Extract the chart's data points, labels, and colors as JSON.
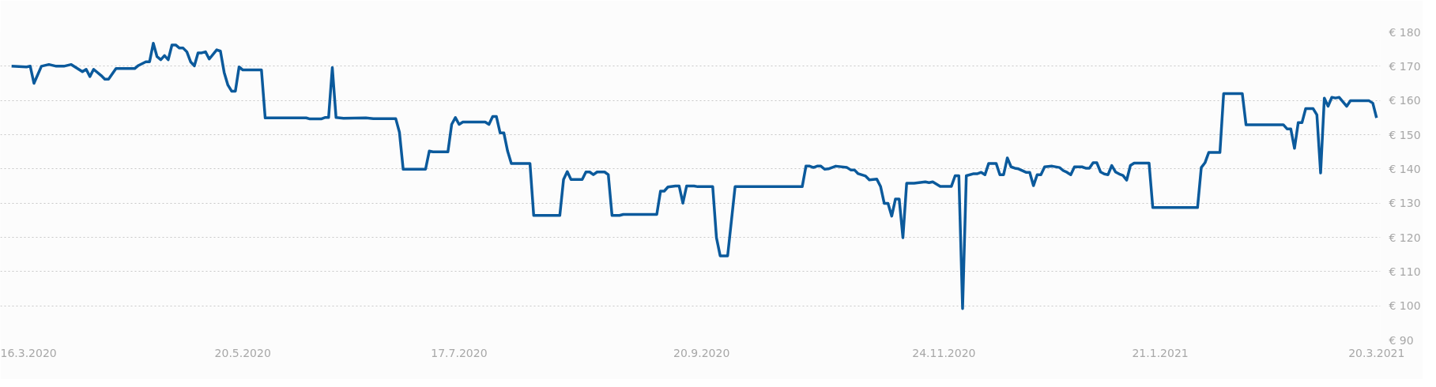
{
  "chart_data": {
    "type": "line",
    "x": [
      "2020-03-19",
      "2020-03-23",
      "2020-03-24",
      "2020-03-25",
      "2020-03-27",
      "2020-03-29",
      "2020-03-31",
      "2020-04-02",
      "2020-04-04",
      "2020-04-07",
      "2020-04-08",
      "2020-04-09",
      "2020-04-10",
      "2020-04-12",
      "2020-04-13",
      "2020-04-14",
      "2020-04-16",
      "2020-04-21",
      "2020-04-22",
      "2020-04-24",
      "2020-04-25",
      "2020-04-26",
      "2020-04-27",
      "2020-04-28",
      "2020-04-29",
      "2020-04-30",
      "2020-05-01",
      "2020-05-02",
      "2020-05-03",
      "2020-05-04",
      "2020-05-05",
      "2020-05-06",
      "2020-05-07",
      "2020-05-08",
      "2020-05-09",
      "2020-05-10",
      "2020-05-11",
      "2020-05-13",
      "2020-05-14",
      "2020-05-15",
      "2020-05-16",
      "2020-05-17",
      "2020-05-18",
      "2020-05-19",
      "2020-05-20",
      "2020-05-25",
      "2020-05-26",
      "2020-06-06",
      "2020-06-07",
      "2020-06-10",
      "2020-06-11",
      "2020-06-12",
      "2020-06-13",
      "2020-06-14",
      "2020-06-16",
      "2020-06-22",
      "2020-06-24",
      "2020-06-30",
      "2020-07-01",
      "2020-07-02",
      "2020-07-08",
      "2020-07-09",
      "2020-07-10",
      "2020-07-14",
      "2020-07-15",
      "2020-07-16",
      "2020-07-17",
      "2020-07-18",
      "2020-07-24",
      "2020-07-25",
      "2020-07-26",
      "2020-07-27",
      "2020-07-28",
      "2020-07-29",
      "2020-07-30",
      "2020-07-31",
      "2020-08-05",
      "2020-08-06",
      "2020-08-13",
      "2020-08-14",
      "2020-08-15",
      "2020-08-16",
      "2020-08-19",
      "2020-08-20",
      "2020-08-21",
      "2020-08-22",
      "2020-08-23",
      "2020-08-25",
      "2020-08-26",
      "2020-08-27",
      "2020-08-29",
      "2020-08-30",
      "2020-09-08",
      "2020-09-09",
      "2020-09-10",
      "2020-09-11",
      "2020-09-13",
      "2020-09-14",
      "2020-09-15",
      "2020-09-16",
      "2020-09-18",
      "2020-09-19",
      "2020-09-23",
      "2020-09-24",
      "2020-09-25",
      "2020-09-27",
      "2020-09-29",
      "2020-10-17",
      "2020-10-18",
      "2020-10-19",
      "2020-10-20",
      "2020-10-21",
      "2020-10-22",
      "2020-10-23",
      "2020-10-24",
      "2020-10-26",
      "2020-10-29",
      "2020-10-30",
      "2020-10-31",
      "2020-11-01",
      "2020-11-03",
      "2020-11-04",
      "2020-11-06",
      "2020-11-07",
      "2020-11-08",
      "2020-11-09",
      "2020-11-10",
      "2020-11-11",
      "2020-11-12",
      "2020-11-13",
      "2020-11-14",
      "2020-11-16",
      "2020-11-19",
      "2020-11-20",
      "2020-11-21",
      "2020-11-23",
      "2020-11-26",
      "2020-11-27",
      "2020-11-28",
      "2020-11-29",
      "2020-11-30",
      "2020-12-02",
      "2020-12-03",
      "2020-12-04",
      "2020-12-05",
      "2020-12-06",
      "2020-12-08",
      "2020-12-09",
      "2020-12-10",
      "2020-12-11",
      "2020-12-12",
      "2020-12-13",
      "2020-12-14",
      "2020-12-16",
      "2020-12-17",
      "2020-12-18",
      "2020-12-19",
      "2020-12-20",
      "2020-12-21",
      "2020-12-23",
      "2020-12-25",
      "2020-12-26",
      "2020-12-27",
      "2020-12-28",
      "2020-12-29",
      "2020-12-31",
      "2021-01-01",
      "2021-01-02",
      "2021-01-03",
      "2021-01-04",
      "2021-01-05",
      "2021-01-06",
      "2021-01-07",
      "2021-01-08",
      "2021-01-09",
      "2021-01-10",
      "2021-01-11",
      "2021-01-12",
      "2021-01-13",
      "2021-01-14",
      "2021-01-18",
      "2021-01-19",
      "2021-01-31",
      "2021-02-01",
      "2021-02-02",
      "2021-02-03",
      "2021-02-06",
      "2021-02-07",
      "2021-02-12",
      "2021-02-13",
      "2021-02-23",
      "2021-02-24",
      "2021-02-25",
      "2021-02-26",
      "2021-02-27",
      "2021-02-28",
      "2021-03-01",
      "2021-03-03",
      "2021-03-04",
      "2021-03-05",
      "2021-03-06",
      "2021-03-07",
      "2021-03-08",
      "2021-03-09",
      "2021-03-10",
      "2021-03-12",
      "2021-03-13",
      "2021-03-18",
      "2021-03-19",
      "2021-03-20"
    ],
    "series": [
      {
        "color": "#0b5a9c",
        "values": [
          170,
          169.8,
          170,
          165,
          170,
          170.5,
          170,
          170,
          170.5,
          168.4,
          169.1,
          167,
          169.1,
          167.3,
          166.2,
          166.2,
          169.3,
          169.3,
          170.2,
          171.3,
          171.3,
          176.7,
          172.8,
          171.9,
          173.1,
          171.9,
          176.2,
          176.2,
          175.3,
          175.3,
          174.2,
          171.3,
          170.1,
          173.9,
          173.9,
          174.2,
          172.1,
          174.8,
          174.4,
          168.2,
          164.5,
          162.7,
          162.7,
          169.8,
          168.9,
          168.9,
          154.9,
          154.9,
          154.6,
          154.6,
          155,
          155,
          169.6,
          155,
          154.8,
          154.9,
          154.7,
          154.7,
          150.7,
          139.9,
          139.9,
          145.2,
          145,
          145,
          153,
          155,
          153,
          153.7,
          153.7,
          153,
          155.3,
          155.3,
          150.5,
          150.5,
          145.2,
          141.6,
          141.6,
          126.4,
          126.4,
          136.9,
          139.2,
          136.9,
          136.9,
          139.1,
          139.1,
          138.3,
          139.1,
          139.1,
          138.3,
          126.4,
          126.4,
          126.7,
          126.7,
          133.5,
          133.5,
          134.7,
          135,
          135,
          130,
          135,
          135,
          134.8,
          134.8,
          119.9,
          114.6,
          114.6,
          134.8,
          134.8,
          140.8,
          140.8,
          140.4,
          140.8,
          140.8,
          139.9,
          140,
          140.8,
          140.4,
          139.7,
          139.7,
          138.6,
          137.9,
          136.8,
          137,
          134.9,
          129.9,
          129.9,
          126.2,
          131.2,
          131.2,
          119.9,
          135.8,
          135.8,
          136.2,
          136,
          136.2,
          134.9,
          134.9,
          138,
          138,
          99.2,
          138,
          138.6,
          138.6,
          139,
          138.3,
          141.6,
          141.6,
          138.3,
          138.3,
          143.2,
          140.6,
          140.2,
          140,
          139,
          139,
          135.1,
          138.3,
          138.3,
          140.6,
          140.8,
          140.4,
          139.5,
          139,
          138.3,
          140.6,
          140.6,
          140.2,
          140.2,
          141.8,
          141.8,
          139.1,
          138.5,
          138.3,
          141,
          139.1,
          138.5,
          138.1,
          136.7,
          141,
          141.7,
          141.7,
          128.7,
          128.7,
          140.4,
          141.8,
          144.8,
          144.8,
          162,
          162,
          152.9,
          152.9,
          151.7,
          151.7,
          146,
          153.5,
          153.5,
          157.6,
          157.6,
          155.8,
          138.8,
          160.7,
          158.3,
          160.9,
          160.7,
          160.9,
          158.3,
          159.9,
          159.9,
          159.2,
          154.9
        ]
      }
    ],
    "xlim": [
      "2020-03-16",
      "2021-03-21"
    ],
    "xticks": [
      {
        "value": "2020-03-16",
        "label": "16.3.2020"
      },
      {
        "value": "2020-05-20",
        "label": "20.5.2020"
      },
      {
        "value": "2020-07-17",
        "label": "17.7.2020"
      },
      {
        "value": "2020-09-20",
        "label": "20.9.2020"
      },
      {
        "value": "2020-11-24",
        "label": "24.11.2020"
      },
      {
        "value": "2021-01-21",
        "label": "21.1.2021"
      },
      {
        "value": "2021-03-20",
        "label": "20.3.2021"
      }
    ],
    "ylim": [
      90,
      180
    ],
    "yticks": [
      {
        "value": 90,
        "label": "€ 90"
      },
      {
        "value": 100,
        "label": "€ 100"
      },
      {
        "value": 110,
        "label": "€ 110"
      },
      {
        "value": 120,
        "label": "€ 120"
      },
      {
        "value": 130,
        "label": "€ 130"
      },
      {
        "value": 140,
        "label": "€ 140"
      },
      {
        "value": 150,
        "label": "€ 150"
      },
      {
        "value": 160,
        "label": "€ 160"
      },
      {
        "value": 170,
        "label": "€ 170"
      },
      {
        "value": 180,
        "label": "€ 180"
      }
    ],
    "grid": "y",
    "marker": "none",
    "line_style": "solid"
  }
}
